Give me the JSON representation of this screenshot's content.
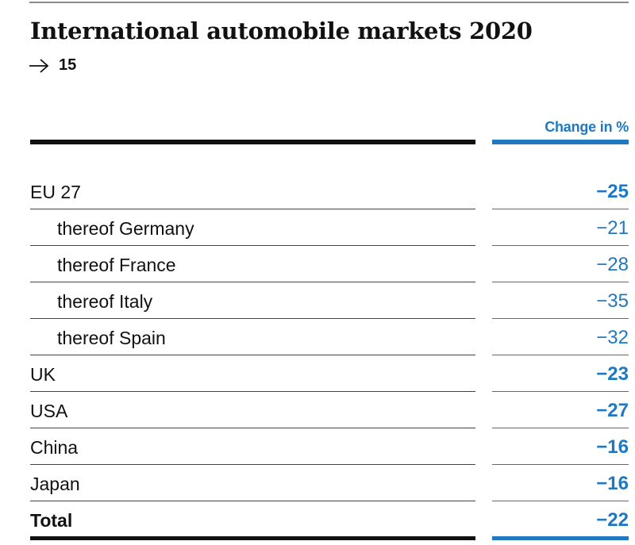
{
  "title": "International automobile markets 2020",
  "reference": {
    "icon": "arrow-right-icon",
    "number": "15"
  },
  "table": {
    "column_header": "Change in %",
    "accent_color": "#1f78c1",
    "rows": [
      {
        "label": "EU 27",
        "value": "−25",
        "level": "main",
        "bold_value": true,
        "bold_label": false
      },
      {
        "label": "thereof Germany",
        "value": "−21",
        "level": "sub",
        "bold_value": false,
        "bold_label": false
      },
      {
        "label": "thereof France",
        "value": "−28",
        "level": "sub",
        "bold_value": false,
        "bold_label": false
      },
      {
        "label": "thereof Italy",
        "value": "−35",
        "level": "sub",
        "bold_value": false,
        "bold_label": false
      },
      {
        "label": "thereof Spain",
        "value": "−32",
        "level": "sub",
        "bold_value": false,
        "bold_label": false
      },
      {
        "label": "UK",
        "value": "−23",
        "level": "main",
        "bold_value": true,
        "bold_label": false
      },
      {
        "label": "USA",
        "value": "−27",
        "level": "main",
        "bold_value": true,
        "bold_label": false
      },
      {
        "label": "China",
        "value": "−16",
        "level": "main",
        "bold_value": true,
        "bold_label": false
      },
      {
        "label": "Japan",
        "value": "−16",
        "level": "main",
        "bold_value": true,
        "bold_label": false
      },
      {
        "label": "Total",
        "value": "−22",
        "level": "main",
        "bold_value": true,
        "bold_label": true
      }
    ]
  }
}
